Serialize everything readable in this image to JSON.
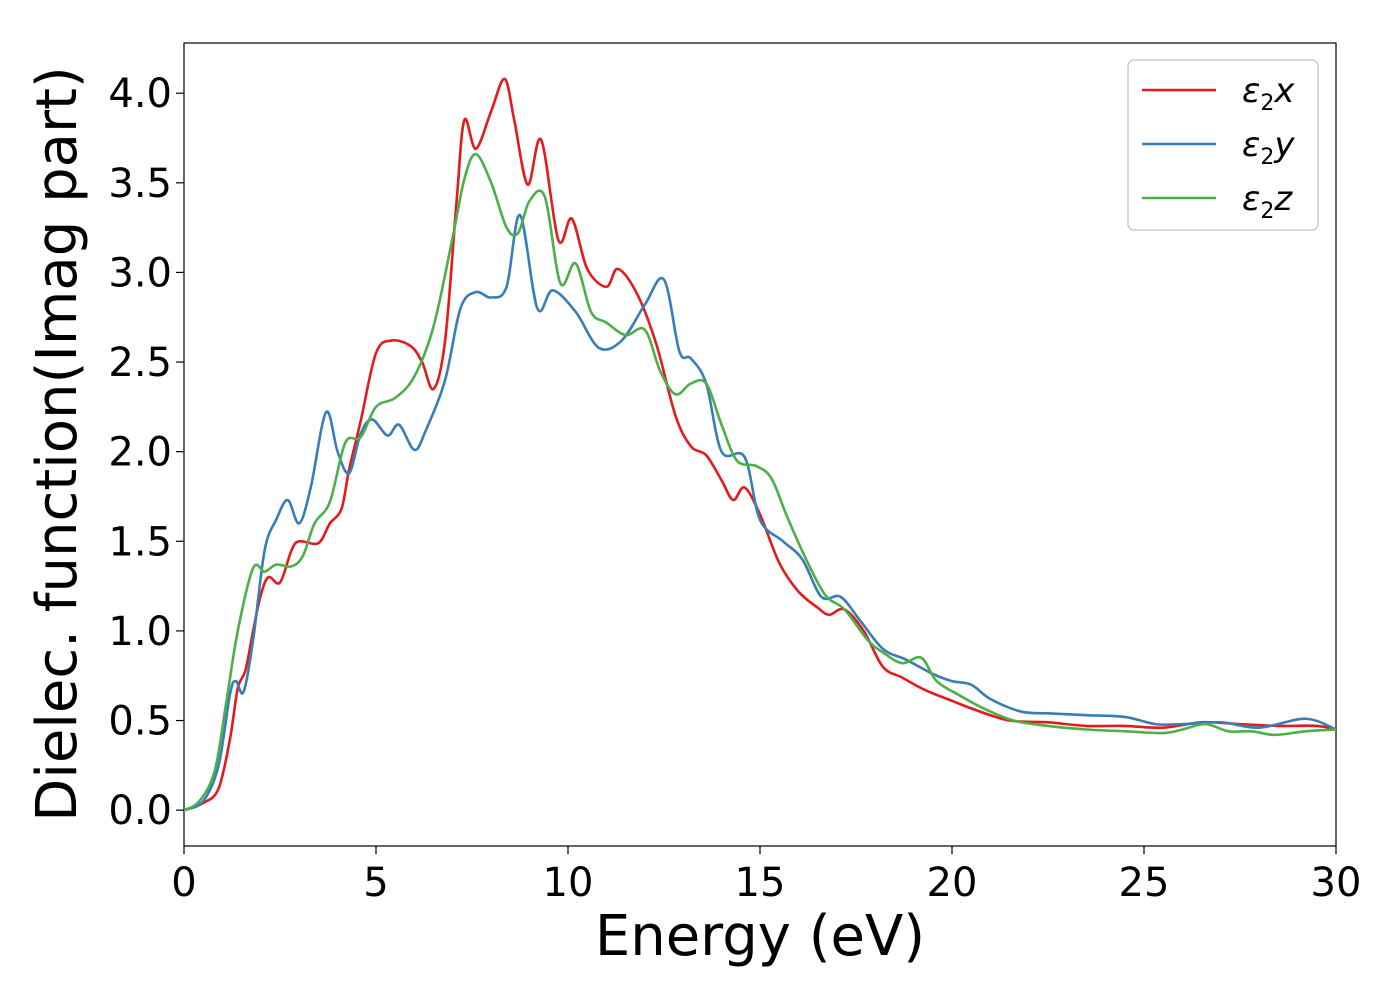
{
  "chart_data": {
    "type": "line",
    "title": "",
    "xlabel": "Energy (eV)",
    "ylabel": "Dielec. function(Imag part)",
    "xlim": [
      0,
      30
    ],
    "ylim": [
      -0.2,
      4.28
    ],
    "xticks": [
      0,
      5,
      10,
      15,
      20,
      25,
      30
    ],
    "yticks": [
      0.0,
      0.5,
      1.0,
      1.5,
      2.0,
      2.5,
      3.0,
      3.5,
      4.0
    ],
    "xtick_labels": [
      "0",
      "5",
      "10",
      "15",
      "20",
      "25",
      "30"
    ],
    "ytick_labels": [
      "0.0",
      "0.5",
      "1.0",
      "1.5",
      "2.0",
      "2.5",
      "3.0",
      "3.5",
      "4.0"
    ],
    "grid": false,
    "legend_position": "top-right",
    "series": [
      {
        "name": "x",
        "label_base": "ε",
        "label_sub": "2",
        "label_var": "x",
        "color": "#e41a1c",
        "points": [
          [
            0,
            0
          ],
          [
            0.5,
            0.04
          ],
          [
            0.9,
            0.12
          ],
          [
            1.2,
            0.4
          ],
          [
            1.4,
            0.68
          ],
          [
            1.6,
            0.78
          ],
          [
            1.8,
            1.0
          ],
          [
            2.0,
            1.2
          ],
          [
            2.2,
            1.3
          ],
          [
            2.5,
            1.27
          ],
          [
            2.8,
            1.45
          ],
          [
            3.0,
            1.5
          ],
          [
            3.5,
            1.49
          ],
          [
            3.8,
            1.6
          ],
          [
            4.1,
            1.68
          ],
          [
            4.3,
            1.9
          ],
          [
            4.6,
            2.17
          ],
          [
            5.0,
            2.55
          ],
          [
            5.4,
            2.62
          ],
          [
            5.9,
            2.59
          ],
          [
            6.2,
            2.5
          ],
          [
            6.5,
            2.35
          ],
          [
            6.8,
            2.62
          ],
          [
            7.1,
            3.4
          ],
          [
            7.3,
            3.85
          ],
          [
            7.6,
            3.69
          ],
          [
            8.0,
            3.9
          ],
          [
            8.35,
            4.08
          ],
          [
            8.6,
            3.85
          ],
          [
            8.95,
            3.49
          ],
          [
            9.3,
            3.74
          ],
          [
            9.75,
            3.18
          ],
          [
            10.1,
            3.3
          ],
          [
            10.5,
            3.02
          ],
          [
            11.0,
            2.92
          ],
          [
            11.3,
            3.02
          ],
          [
            11.8,
            2.88
          ],
          [
            12.3,
            2.6
          ],
          [
            12.8,
            2.2
          ],
          [
            13.2,
            2.03
          ],
          [
            13.6,
            1.98
          ],
          [
            14.0,
            1.84
          ],
          [
            14.3,
            1.73
          ],
          [
            14.6,
            1.8
          ],
          [
            15.0,
            1.65
          ],
          [
            15.5,
            1.38
          ],
          [
            16.0,
            1.22
          ],
          [
            16.5,
            1.13
          ],
          [
            16.8,
            1.09
          ],
          [
            17.2,
            1.12
          ],
          [
            17.7,
            1.0
          ],
          [
            18.2,
            0.8
          ],
          [
            18.7,
            0.74
          ],
          [
            19.3,
            0.67
          ],
          [
            20.0,
            0.61
          ],
          [
            20.6,
            0.56
          ],
          [
            21.5,
            0.5
          ],
          [
            22.5,
            0.49
          ],
          [
            23.5,
            0.47
          ],
          [
            24.5,
            0.47
          ],
          [
            25.5,
            0.46
          ],
          [
            26.5,
            0.49
          ],
          [
            27.5,
            0.48
          ],
          [
            28.5,
            0.47
          ],
          [
            29.5,
            0.47
          ],
          [
            30.0,
            0.45
          ]
        ]
      },
      {
        "name": "y",
        "label_base": "ε",
        "label_sub": "2",
        "label_var": "y",
        "color": "#377eb8",
        "points": [
          [
            0,
            0
          ],
          [
            0.5,
            0.05
          ],
          [
            0.9,
            0.25
          ],
          [
            1.2,
            0.65
          ],
          [
            1.35,
            0.72
          ],
          [
            1.55,
            0.66
          ],
          [
            1.8,
            0.95
          ],
          [
            2.1,
            1.45
          ],
          [
            2.4,
            1.62
          ],
          [
            2.7,
            1.73
          ],
          [
            3.0,
            1.6
          ],
          [
            3.3,
            1.8
          ],
          [
            3.7,
            2.22
          ],
          [
            4.0,
            2.0
          ],
          [
            4.3,
            1.88
          ],
          [
            4.6,
            2.1
          ],
          [
            4.9,
            2.18
          ],
          [
            5.3,
            2.09
          ],
          [
            5.6,
            2.15
          ],
          [
            6.0,
            2.01
          ],
          [
            6.3,
            2.12
          ],
          [
            6.8,
            2.4
          ],
          [
            7.2,
            2.8
          ],
          [
            7.6,
            2.89
          ],
          [
            8.0,
            2.86
          ],
          [
            8.4,
            2.92
          ],
          [
            8.75,
            3.32
          ],
          [
            9.2,
            2.8
          ],
          [
            9.6,
            2.9
          ],
          [
            10.2,
            2.78
          ],
          [
            10.8,
            2.58
          ],
          [
            11.4,
            2.62
          ],
          [
            12.0,
            2.82
          ],
          [
            12.5,
            2.96
          ],
          [
            12.9,
            2.56
          ],
          [
            13.2,
            2.52
          ],
          [
            13.6,
            2.38
          ],
          [
            14.0,
            2.0
          ],
          [
            14.6,
            1.97
          ],
          [
            15.0,
            1.62
          ],
          [
            15.6,
            1.5
          ],
          [
            16.1,
            1.4
          ],
          [
            16.6,
            1.19
          ],
          [
            17.1,
            1.19
          ],
          [
            17.6,
            1.06
          ],
          [
            18.2,
            0.9
          ],
          [
            18.8,
            0.84
          ],
          [
            19.5,
            0.76
          ],
          [
            20.0,
            0.72
          ],
          [
            20.5,
            0.7
          ],
          [
            21.0,
            0.62
          ],
          [
            21.8,
            0.55
          ],
          [
            22.5,
            0.54
          ],
          [
            23.5,
            0.53
          ],
          [
            24.5,
            0.52
          ],
          [
            25.3,
            0.48
          ],
          [
            26.0,
            0.48
          ],
          [
            27.0,
            0.49
          ],
          [
            28.0,
            0.46
          ],
          [
            29.2,
            0.51
          ],
          [
            30.0,
            0.45
          ]
        ]
      },
      {
        "name": "z",
        "label_base": "ε",
        "label_sub": "2",
        "label_var": "z",
        "color": "#4daf4a",
        "points": [
          [
            0,
            0
          ],
          [
            0.4,
            0.05
          ],
          [
            0.8,
            0.22
          ],
          [
            1.1,
            0.6
          ],
          [
            1.4,
            1.0
          ],
          [
            1.8,
            1.35
          ],
          [
            2.1,
            1.33
          ],
          [
            2.4,
            1.37
          ],
          [
            2.8,
            1.36
          ],
          [
            3.1,
            1.42
          ],
          [
            3.4,
            1.6
          ],
          [
            3.8,
            1.72
          ],
          [
            4.2,
            2.05
          ],
          [
            4.6,
            2.08
          ],
          [
            5.0,
            2.25
          ],
          [
            5.5,
            2.3
          ],
          [
            6.0,
            2.42
          ],
          [
            6.5,
            2.7
          ],
          [
            7.0,
            3.2
          ],
          [
            7.3,
            3.52
          ],
          [
            7.6,
            3.66
          ],
          [
            8.0,
            3.5
          ],
          [
            8.4,
            3.25
          ],
          [
            8.7,
            3.22
          ],
          [
            9.0,
            3.4
          ],
          [
            9.4,
            3.42
          ],
          [
            9.8,
            2.94
          ],
          [
            10.2,
            3.05
          ],
          [
            10.6,
            2.78
          ],
          [
            11.0,
            2.72
          ],
          [
            11.5,
            2.65
          ],
          [
            12.0,
            2.68
          ],
          [
            12.4,
            2.45
          ],
          [
            12.8,
            2.32
          ],
          [
            13.2,
            2.38
          ],
          [
            13.6,
            2.38
          ],
          [
            14.0,
            2.15
          ],
          [
            14.4,
            1.95
          ],
          [
            14.9,
            1.92
          ],
          [
            15.3,
            1.85
          ],
          [
            15.7,
            1.64
          ],
          [
            16.2,
            1.4
          ],
          [
            16.7,
            1.2
          ],
          [
            17.2,
            1.12
          ],
          [
            17.8,
            0.95
          ],
          [
            18.2,
            0.88
          ],
          [
            18.7,
            0.82
          ],
          [
            19.2,
            0.85
          ],
          [
            19.6,
            0.72
          ],
          [
            20.2,
            0.64
          ],
          [
            20.8,
            0.57
          ],
          [
            21.6,
            0.5
          ],
          [
            22.5,
            0.47
          ],
          [
            23.5,
            0.45
          ],
          [
            24.5,
            0.44
          ],
          [
            25.5,
            0.43
          ],
          [
            26.0,
            0.45
          ],
          [
            26.6,
            0.48
          ],
          [
            27.2,
            0.44
          ],
          [
            27.8,
            0.44
          ],
          [
            28.4,
            0.42
          ],
          [
            29.2,
            0.44
          ],
          [
            30.0,
            0.45
          ]
        ]
      }
    ]
  }
}
